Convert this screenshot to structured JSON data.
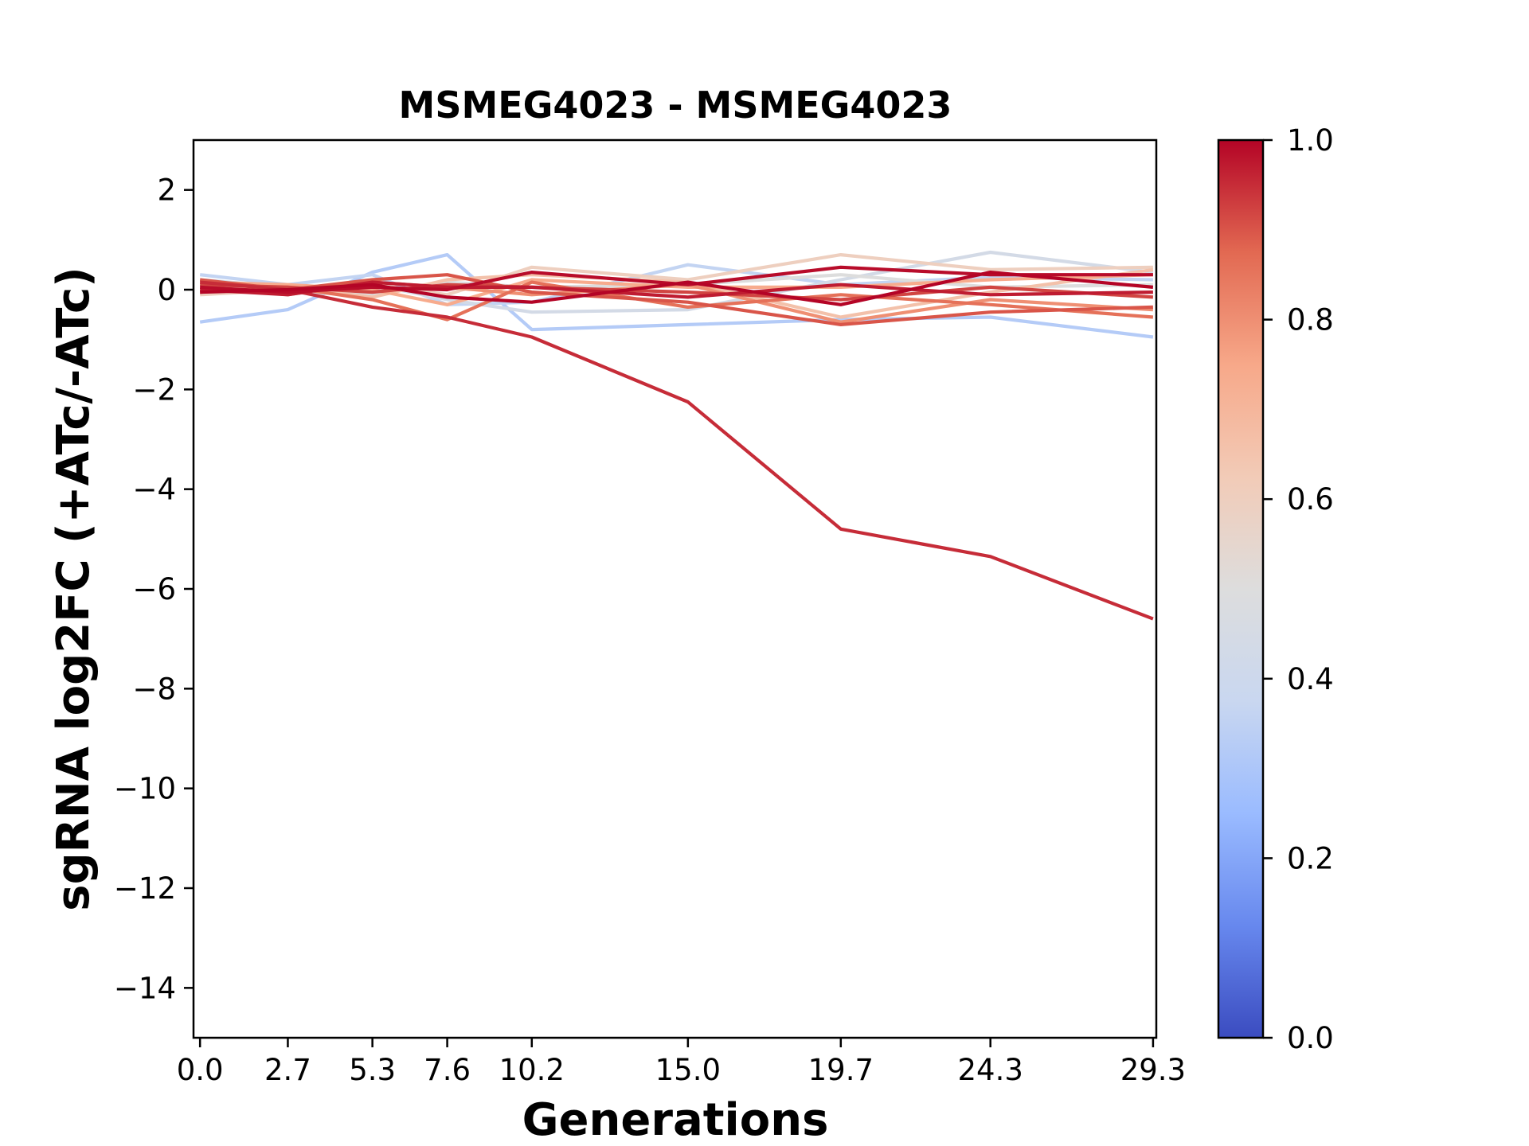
{
  "chart_data": {
    "type": "line",
    "title": "MSMEG4023 - MSMEG4023",
    "xlabel": "Generations",
    "ylabel": "sgRNA log2FC (+ATc/-ATc)",
    "x": [
      0.0,
      2.7,
      5.3,
      7.6,
      10.2,
      15.0,
      19.7,
      24.3,
      29.3
    ],
    "x_tick_labels": [
      "0.0",
      "2.7",
      "5.3",
      "7.6",
      "10.2",
      "15.0",
      "19.7",
      "24.3",
      "29.3"
    ],
    "xlim": [
      -0.2,
      29.4
    ],
    "ylim": [
      -15,
      3
    ],
    "y_ticks": [
      2,
      0,
      -2,
      -4,
      -6,
      -8,
      -10,
      -12,
      -14
    ],
    "y_tick_labels": [
      "2",
      "0",
      "−2",
      "−4",
      "−6",
      "−8",
      "−10",
      "−12",
      "−14"
    ],
    "grid": false,
    "legend": "none",
    "colorbar": {
      "range": [
        0.0,
        1.0
      ],
      "ticks": [
        0.0,
        0.2,
        0.4,
        0.6,
        0.8,
        1.0
      ],
      "tick_labels": [
        "0.0",
        "0.2",
        "0.4",
        "0.6",
        "0.8",
        "1.0"
      ],
      "colormap": "coolwarm",
      "colors": [
        "#3b4cc0",
        "#6788ee",
        "#9abbff",
        "#c9d7f0",
        "#dddddd",
        "#f2cbb7",
        "#f7a889",
        "#e26952",
        "#b40426"
      ]
    },
    "series": [
      {
        "color_value": 0.32,
        "values": [
          -0.65,
          -0.4,
          0.35,
          0.7,
          -0.8,
          -0.7,
          -0.6,
          -0.55,
          -0.95
        ]
      },
      {
        "color_value": 0.36,
        "values": [
          0.3,
          0.1,
          0.3,
          -0.3,
          -0.25,
          0.5,
          0.1,
          0.25,
          0.2
        ]
      },
      {
        "color_value": 0.44,
        "values": [
          0.2,
          0.05,
          0.1,
          -0.2,
          -0.45,
          -0.4,
          0.2,
          0.75,
          0.35
        ]
      },
      {
        "color_value": 0.5,
        "values": [
          0.1,
          -0.05,
          -0.1,
          0.15,
          0.05,
          0.1,
          0.3,
          0.05,
          0.1
        ]
      },
      {
        "color_value": 0.6,
        "values": [
          -0.1,
          0.0,
          0.1,
          -0.1,
          0.45,
          0.2,
          0.7,
          0.4,
          0.45
        ]
      },
      {
        "color_value": 0.66,
        "values": [
          0.0,
          0.05,
          -0.15,
          0.2,
          0.3,
          0.15,
          -0.55,
          -0.05,
          0.4
        ]
      },
      {
        "color_value": 0.74,
        "values": [
          0.15,
          0.1,
          0.0,
          -0.3,
          0.2,
          0.05,
          0.05,
          0.2,
          0.3
        ]
      },
      {
        "color_value": 0.8,
        "values": [
          0.05,
          -0.1,
          0.15,
          0.05,
          -0.1,
          0.1,
          -0.65,
          -0.2,
          -0.4
        ]
      },
      {
        "color_value": 0.86,
        "values": [
          -0.05,
          0.05,
          -0.2,
          -0.6,
          0.15,
          -0.35,
          -0.1,
          -0.3,
          -0.55
        ]
      },
      {
        "color_value": 0.9,
        "values": [
          0.2,
          0.0,
          0.2,
          0.3,
          -0.05,
          -0.25,
          -0.7,
          -0.45,
          -0.35
        ]
      },
      {
        "color_value": 0.92,
        "values": [
          0.1,
          0.05,
          -0.05,
          0.1,
          0.05,
          -0.05,
          -0.2,
          0.05,
          -0.15
        ]
      },
      {
        "color_value": 0.95,
        "values": [
          0.15,
          0.0,
          -0.35,
          -0.55,
          -0.95,
          -2.25,
          -4.8,
          -5.35,
          -6.6
        ]
      },
      {
        "color_value": 0.97,
        "values": [
          0.0,
          -0.1,
          0.15,
          0.05,
          0.05,
          -0.15,
          0.1,
          -0.1,
          -0.05
        ]
      },
      {
        "color_value": 0.99,
        "values": [
          0.05,
          -0.05,
          0.05,
          0.0,
          0.35,
          0.1,
          0.45,
          0.3,
          0.3
        ]
      },
      {
        "color_value": 1.0,
        "values": [
          -0.05,
          0.0,
          0.1,
          -0.15,
          -0.25,
          0.15,
          -0.3,
          0.35,
          0.05
        ]
      }
    ]
  }
}
